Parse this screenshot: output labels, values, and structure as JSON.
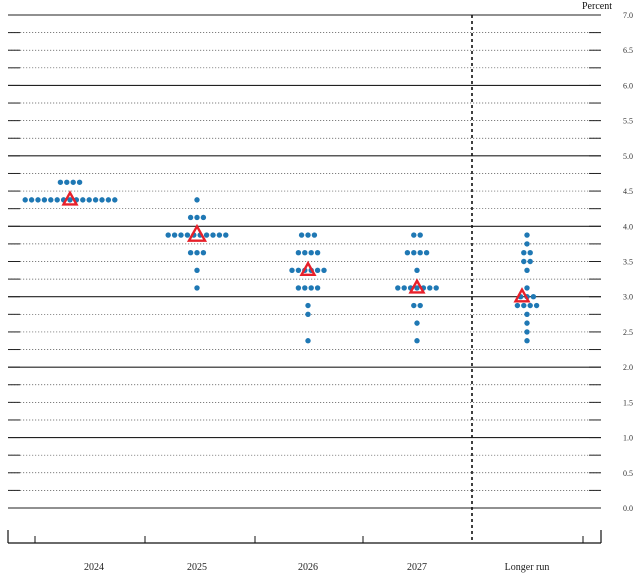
{
  "chart_data": {
    "type": "scatter",
    "ylabel": "Percent",
    "ylim": [
      0,
      7.0
    ],
    "y_ticks": [
      "0.0",
      "0.5",
      "1.0",
      "1.5",
      "2.0",
      "2.5",
      "3.0",
      "3.5",
      "4.0",
      "4.5",
      "5.0",
      "5.5",
      "6.0",
      "6.5",
      "7.0"
    ],
    "grid": true,
    "categories": [
      "2024",
      "2025",
      "2026",
      "2027",
      "Longer run"
    ],
    "dot_color": "#1f78b4",
    "median_color": "#e8202a",
    "dots": [
      {
        "category": "2024",
        "levels": [
          {
            "value": 4.625,
            "count": 4
          },
          {
            "value": 4.375,
            "count": 15
          }
        ]
      },
      {
        "category": "2025",
        "levels": [
          {
            "value": 4.375,
            "count": 1
          },
          {
            "value": 4.125,
            "count": 3
          },
          {
            "value": 3.875,
            "count": 10
          },
          {
            "value": 3.625,
            "count": 3
          },
          {
            "value": 3.375,
            "count": 1
          },
          {
            "value": 3.125,
            "count": 1
          }
        ]
      },
      {
        "category": "2026",
        "levels": [
          {
            "value": 3.875,
            "count": 3
          },
          {
            "value": 3.625,
            "count": 4
          },
          {
            "value": 3.375,
            "count": 6
          },
          {
            "value": 3.125,
            "count": 4
          },
          {
            "value": 2.875,
            "count": 1
          },
          {
            "value": 2.75,
            "count": 1
          },
          {
            "value": 2.375,
            "count": 1
          }
        ]
      },
      {
        "category": "2027",
        "levels": [
          {
            "value": 3.875,
            "count": 2
          },
          {
            "value": 3.625,
            "count": 4
          },
          {
            "value": 3.375,
            "count": 1
          },
          {
            "value": 3.125,
            "count": 7
          },
          {
            "value": 2.875,
            "count": 2
          },
          {
            "value": 2.625,
            "count": 1
          },
          {
            "value": 2.375,
            "count": 1
          }
        ]
      },
      {
        "category": "Longer run",
        "levels": [
          {
            "value": 3.875,
            "count": 1
          },
          {
            "value": 3.75,
            "count": 1
          },
          {
            "value": 3.625,
            "count": 2
          },
          {
            "value": 3.5,
            "count": 2
          },
          {
            "value": 3.375,
            "count": 1
          },
          {
            "value": 3.125,
            "count": 1
          },
          {
            "value": 3.0,
            "count": 3
          },
          {
            "value": 2.875,
            "count": 4
          },
          {
            "value": 2.75,
            "count": 1
          },
          {
            "value": 2.625,
            "count": 1
          },
          {
            "value": 2.5,
            "count": 1
          },
          {
            "value": 2.375,
            "count": 1
          }
        ]
      }
    ],
    "medians": [
      {
        "category": "2024",
        "value": 4.375
      },
      {
        "category": "2025",
        "value": 3.875
      },
      {
        "category": "2026",
        "value": 3.375
      },
      {
        "category": "2027",
        "value": 3.125
      },
      {
        "category": "Longer run",
        "value": 3.0
      }
    ]
  }
}
